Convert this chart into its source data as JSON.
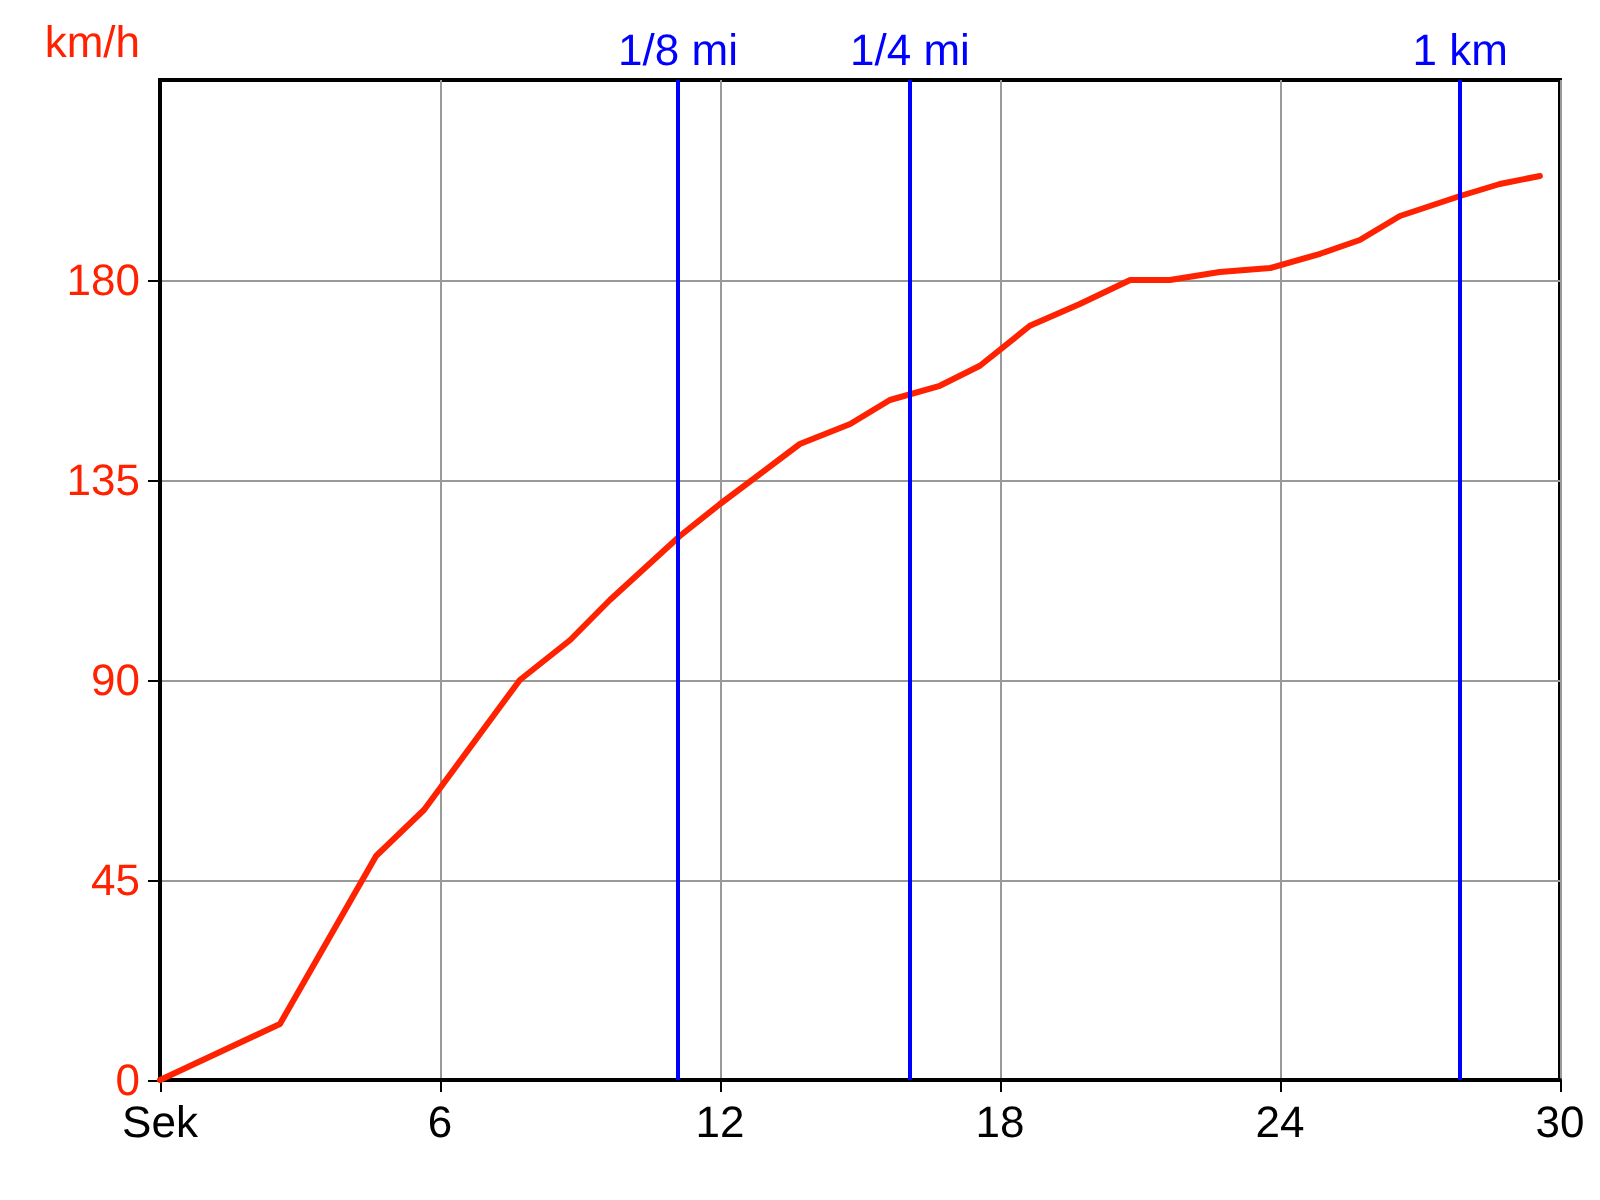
{
  "chart_data": {
    "type": "line",
    "ylabel": "km/h",
    "x": [
      0,
      2.57,
      4.63,
      5.66,
      7.71,
      8.79,
      9.64,
      11.14,
      12.0,
      13.71,
      14.79,
      15.64,
      16.71,
      17.57,
      18.64,
      19.71,
      20.79,
      21.64,
      22.71,
      23.79,
      24.86,
      25.71,
      26.57,
      27.86,
      28.71,
      29.57
    ],
    "series": [
      {
        "color": "#ff2200",
        "values": [
          0,
          12.6,
          50.4,
          60.8,
          90,
          99,
          108,
          122.4,
          129.6,
          143.1,
          147.6,
          153,
          156.2,
          160.7,
          169.7,
          174.6,
          180,
          180,
          181.8,
          182.7,
          185.9,
          189,
          194.4,
          198.9,
          201.6,
          203.4
        ]
      }
    ],
    "xlim": [
      0,
      30
    ],
    "xticks": [
      {
        "value": 0,
        "label": "Sek"
      },
      6,
      12,
      18,
      24,
      30
    ],
    "ylim": [
      0,
      225
    ],
    "yticks": [
      0,
      45,
      90,
      135,
      180
    ],
    "ref_lines": [
      {
        "axis": "x",
        "value": 11.1,
        "label": "1/8 mi",
        "color": "#0000ff"
      },
      {
        "axis": "x",
        "value": 16.07,
        "label": "1/4 mi",
        "color": "#0000ff"
      },
      {
        "axis": "x",
        "value": 27.86,
        "label": "1 km",
        "color": "#0000ff"
      }
    ],
    "grid": true,
    "marker": "none",
    "line_style": "solid"
  }
}
